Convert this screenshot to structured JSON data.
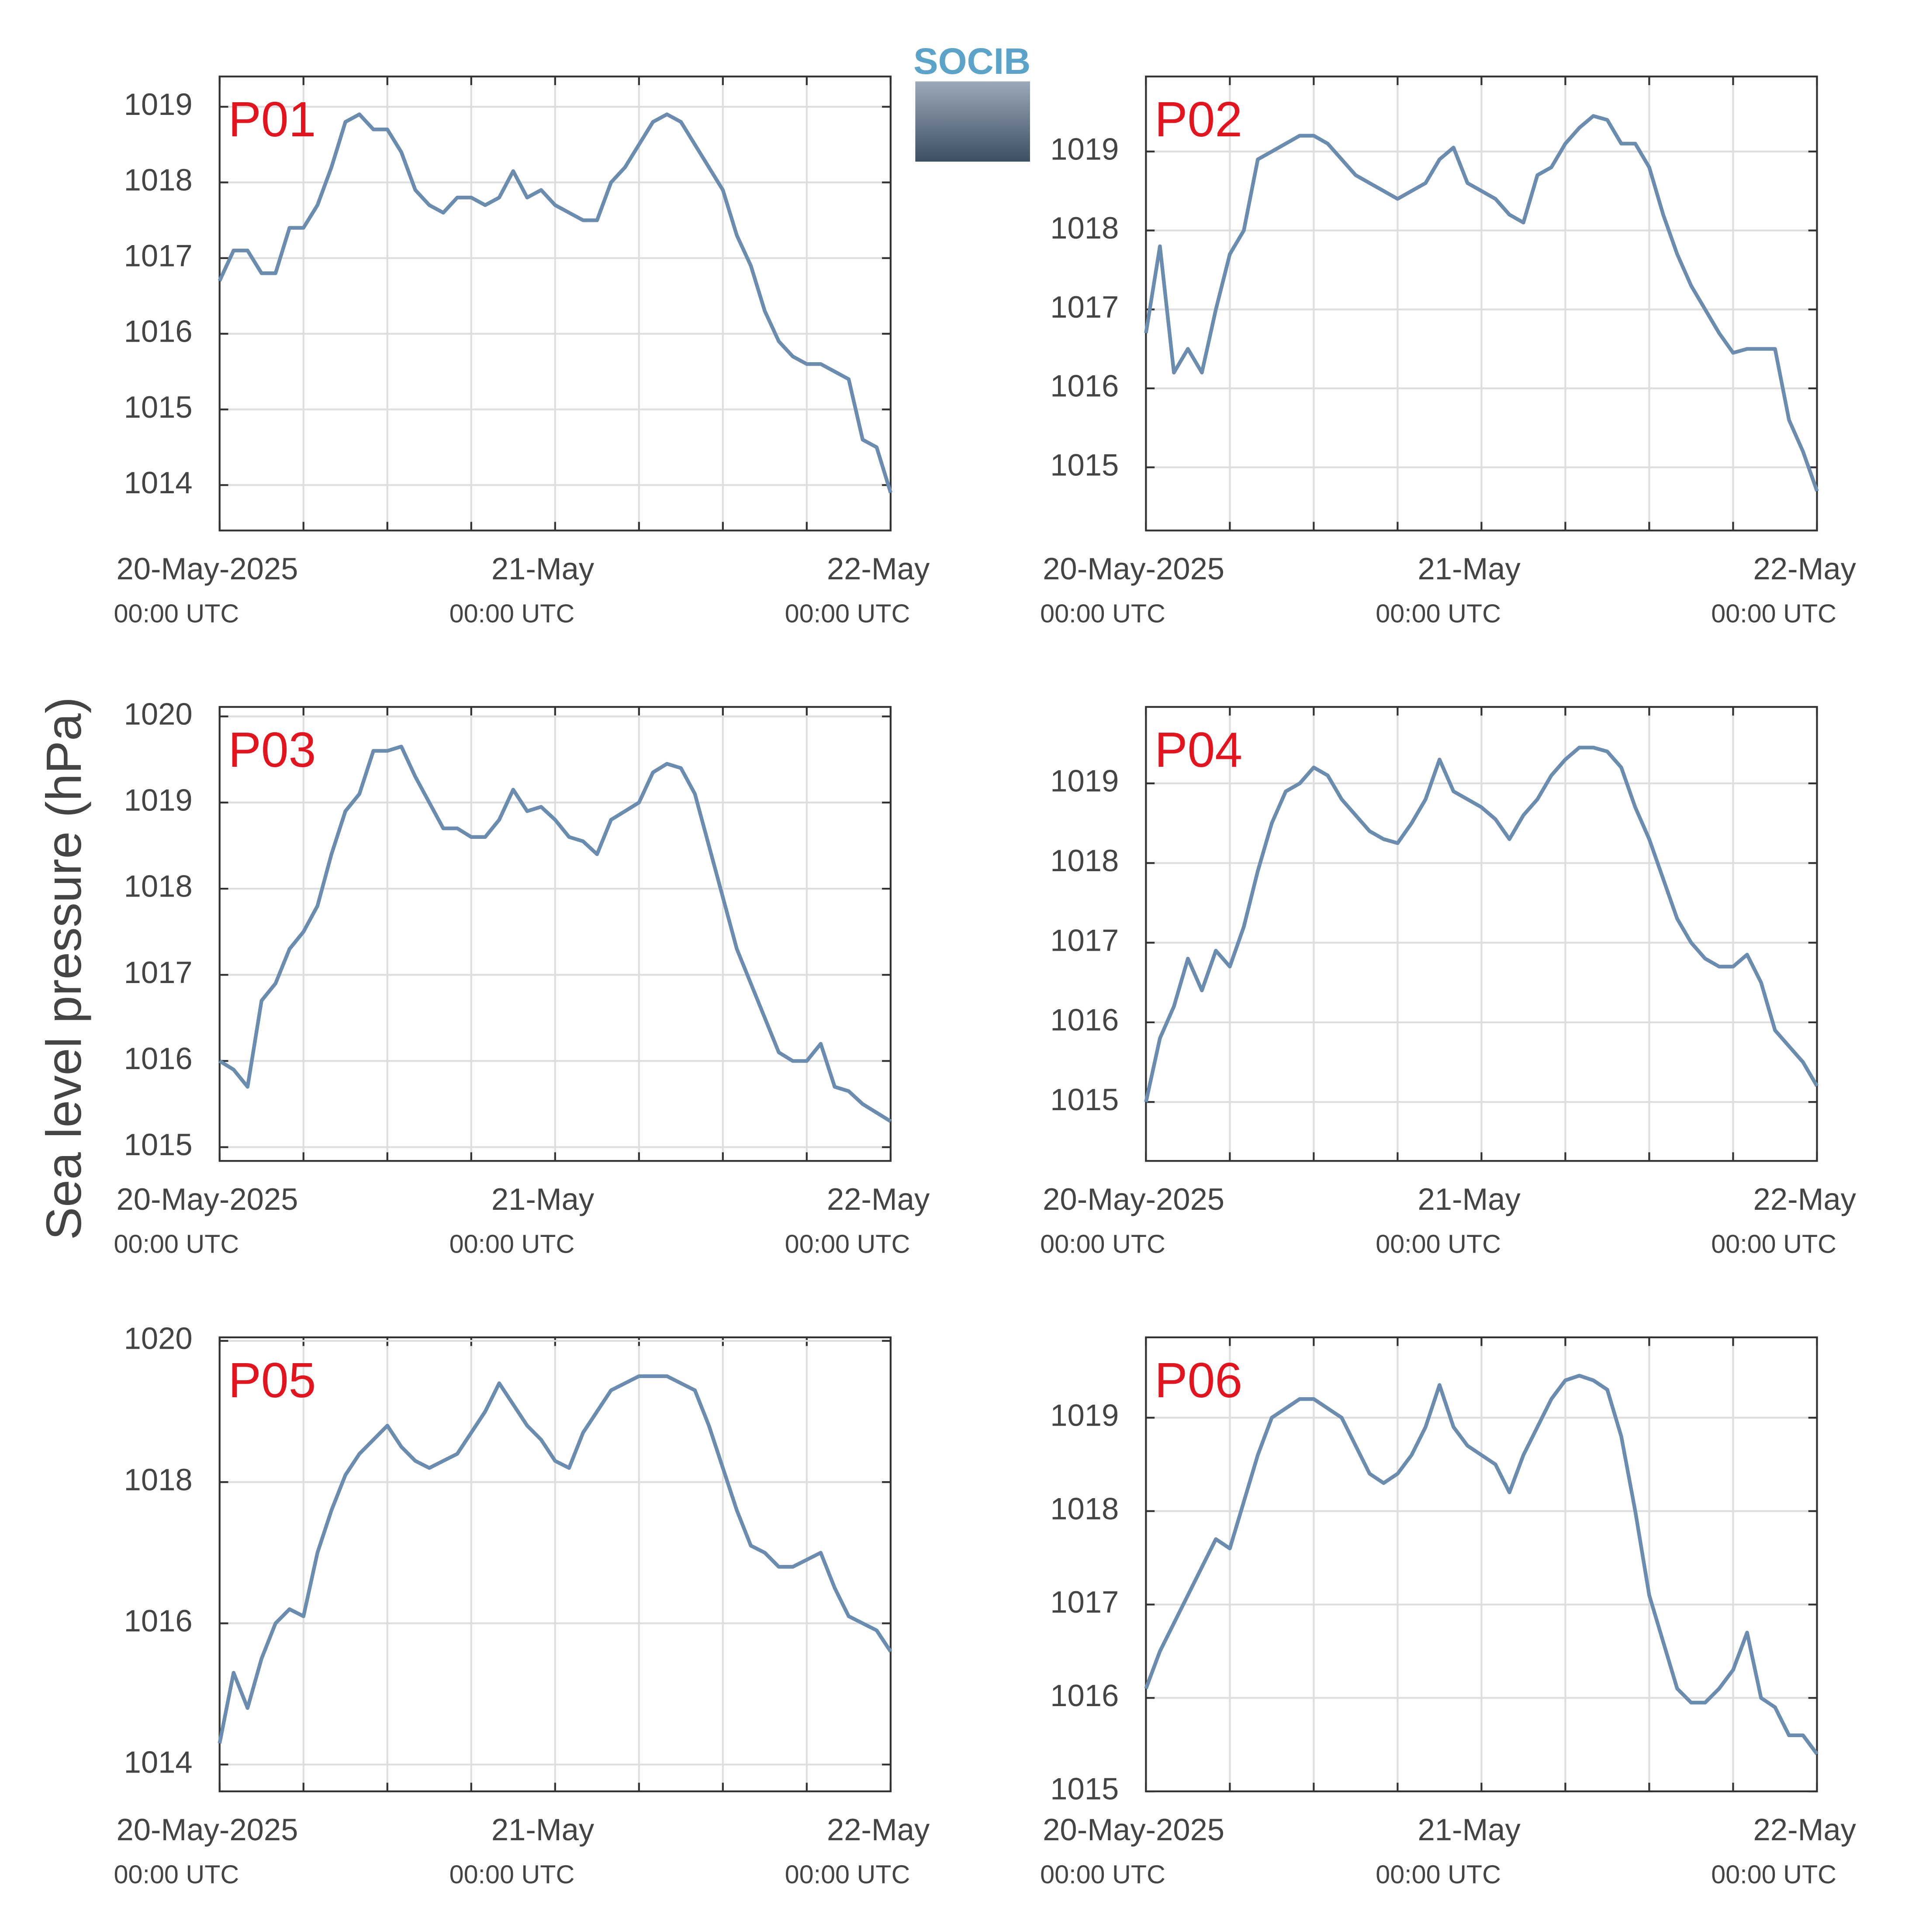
{
  "ylabel": "Sea level pressure (hPa)",
  "logo": "SOCIB",
  "chart_data": [
    {
      "type": "line",
      "title": "P01",
      "color": "#6a8caf",
      "grid": true,
      "xlim": [
        0,
        48
      ],
      "ylim": [
        1013.4,
        1019.4
      ],
      "yticks": [
        1014,
        1015,
        1016,
        1017,
        1018,
        1019
      ],
      "xticks": [
        {
          "value": 0,
          "label": "20-May-2025",
          "sublabel": "00:00 UTC"
        },
        {
          "value": 24,
          "label": "21-May",
          "sublabel": "00:00 UTC"
        },
        {
          "value": 48,
          "label": "22-May",
          "sublabel": "00:00 UTC"
        }
      ],
      "minor_xticks": [
        6,
        12,
        18,
        30,
        36,
        42
      ],
      "x": [
        0,
        1,
        2,
        3,
        4,
        5,
        6,
        7,
        8,
        9,
        10,
        11,
        12,
        13,
        14,
        15,
        16,
        17,
        18,
        19,
        20,
        21,
        22,
        23,
        24,
        25,
        26,
        27,
        28,
        29,
        30,
        31,
        32,
        33,
        34,
        35,
        36,
        37,
        38,
        39,
        40,
        41,
        42,
        43,
        44,
        45,
        46,
        47,
        48
      ],
      "values": [
        1016.7,
        1017.1,
        1017.1,
        1016.8,
        1016.8,
        1017.4,
        1017.4,
        1017.7,
        1018.2,
        1018.8,
        1018.9,
        1018.7,
        1018.7,
        1018.4,
        1017.9,
        1017.7,
        1017.6,
        1017.8,
        1017.8,
        1017.7,
        1017.8,
        1018.15,
        1017.8,
        1017.9,
        1017.7,
        1017.6,
        1017.5,
        1017.5,
        1018.0,
        1018.2,
        1018.5,
        1018.8,
        1018.9,
        1018.8,
        1018.5,
        1018.2,
        1017.9,
        1017.3,
        1016.9,
        1016.3,
        1015.9,
        1015.7,
        1015.6,
        1015.6,
        1015.5,
        1015.4,
        1014.6,
        1014.5,
        1013.9
      ]
    },
    {
      "type": "line",
      "title": "P02",
      "color": "#6a8caf",
      "grid": true,
      "xlim": [
        0,
        48
      ],
      "ylim": [
        1014.2,
        1019.95
      ],
      "yticks": [
        1015,
        1016,
        1017,
        1018,
        1019
      ],
      "xticks": [
        {
          "value": 0,
          "label": "20-May-2025",
          "sublabel": "00:00 UTC"
        },
        {
          "value": 24,
          "label": "21-May",
          "sublabel": "00:00 UTC"
        },
        {
          "value": 48,
          "label": "22-May",
          "sublabel": "00:00 UTC"
        }
      ],
      "minor_xticks": [
        6,
        12,
        18,
        30,
        36,
        42
      ],
      "x": [
        0,
        1,
        2,
        3,
        4,
        5,
        6,
        7,
        8,
        9,
        10,
        11,
        12,
        13,
        14,
        15,
        16,
        17,
        18,
        19,
        20,
        21,
        22,
        23,
        24,
        25,
        26,
        27,
        28,
        29,
        30,
        31,
        32,
        33,
        34,
        35,
        36,
        37,
        38,
        39,
        40,
        41,
        42,
        43,
        44,
        45,
        46,
        47,
        48
      ],
      "values": [
        1016.7,
        1017.8,
        1016.2,
        1016.5,
        1016.2,
        1017.0,
        1017.7,
        1018.0,
        1018.9,
        1019.0,
        1019.1,
        1019.2,
        1019.2,
        1019.1,
        1018.9,
        1018.7,
        1018.6,
        1018.5,
        1018.4,
        1018.5,
        1018.6,
        1018.9,
        1019.05,
        1018.6,
        1018.5,
        1018.4,
        1018.2,
        1018.1,
        1018.7,
        1018.8,
        1019.1,
        1019.3,
        1019.45,
        1019.4,
        1019.1,
        1019.1,
        1018.8,
        1018.2,
        1017.7,
        1017.3,
        1017.0,
        1016.7,
        1016.45,
        1016.5,
        1016.5,
        1016.5,
        1015.6,
        1015.2,
        1014.7
      ]
    },
    {
      "type": "line",
      "title": "P03",
      "color": "#6a8caf",
      "grid": true,
      "xlim": [
        0,
        48
      ],
      "ylim": [
        1014.84,
        1020.11
      ],
      "yticks": [
        1015,
        1016,
        1017,
        1018,
        1019,
        1020
      ],
      "xticks": [
        {
          "value": 0,
          "label": "20-May-2025",
          "sublabel": "00:00 UTC"
        },
        {
          "value": 24,
          "label": "21-May",
          "sublabel": "00:00 UTC"
        },
        {
          "value": 48,
          "label": "22-May",
          "sublabel": "00:00 UTC"
        }
      ],
      "minor_xticks": [
        6,
        12,
        18,
        30,
        36,
        42
      ],
      "x": [
        0,
        1,
        2,
        3,
        4,
        5,
        6,
        7,
        8,
        9,
        10,
        11,
        12,
        13,
        14,
        15,
        16,
        17,
        18,
        19,
        20,
        21,
        22,
        23,
        24,
        25,
        26,
        27,
        28,
        29,
        30,
        31,
        32,
        33,
        34,
        35,
        36,
        37,
        38,
        39,
        40,
        41,
        42,
        43,
        44,
        45,
        46,
        47,
        48
      ],
      "values": [
        1016.0,
        1015.9,
        1015.7,
        1016.7,
        1016.9,
        1017.3,
        1017.5,
        1017.8,
        1018.4,
        1018.9,
        1019.1,
        1019.6,
        1019.6,
        1019.65,
        1019.3,
        1019.0,
        1018.7,
        1018.7,
        1018.6,
        1018.6,
        1018.8,
        1019.15,
        1018.9,
        1018.95,
        1018.8,
        1018.6,
        1018.55,
        1018.4,
        1018.8,
        1018.9,
        1019.0,
        1019.35,
        1019.45,
        1019.4,
        1019.1,
        1018.5,
        1017.9,
        1017.3,
        1016.9,
        1016.5,
        1016.1,
        1016.0,
        1016.0,
        1016.2,
        1015.7,
        1015.65,
        1015.5,
        1015.4,
        1015.3
      ]
    },
    {
      "type": "line",
      "title": "P04",
      "color": "#6a8caf",
      "grid": true,
      "xlim": [
        0,
        48
      ],
      "ylim": [
        1014.26,
        1019.96
      ],
      "yticks": [
        1015,
        1016,
        1017,
        1018,
        1019
      ],
      "xticks": [
        {
          "value": 0,
          "label": "20-May-2025",
          "sublabel": "00:00 UTC"
        },
        {
          "value": 24,
          "label": "21-May",
          "sublabel": "00:00 UTC"
        },
        {
          "value": 48,
          "label": "22-May",
          "sublabel": "00:00 UTC"
        }
      ],
      "minor_xticks": [
        6,
        12,
        18,
        30,
        36,
        42
      ],
      "x": [
        0,
        1,
        2,
        3,
        4,
        5,
        6,
        7,
        8,
        9,
        10,
        11,
        12,
        13,
        14,
        15,
        16,
        17,
        18,
        19,
        20,
        21,
        22,
        23,
        24,
        25,
        26,
        27,
        28,
        29,
        30,
        31,
        32,
        33,
        34,
        35,
        36,
        37,
        38,
        39,
        40,
        41,
        42,
        43,
        44,
        45,
        46,
        47,
        48
      ],
      "values": [
        1015.0,
        1015.8,
        1016.2,
        1016.8,
        1016.4,
        1016.9,
        1016.7,
        1017.2,
        1017.9,
        1018.5,
        1018.9,
        1019.0,
        1019.2,
        1019.1,
        1018.8,
        1018.6,
        1018.4,
        1018.3,
        1018.25,
        1018.5,
        1018.8,
        1019.3,
        1018.9,
        1018.8,
        1018.7,
        1018.55,
        1018.3,
        1018.6,
        1018.8,
        1019.1,
        1019.3,
        1019.45,
        1019.45,
        1019.4,
        1019.2,
        1018.7,
        1018.3,
        1017.8,
        1017.3,
        1017.0,
        1016.8,
        1016.7,
        1016.7,
        1016.85,
        1016.5,
        1015.9,
        1015.7,
        1015.5,
        1015.2
      ]
    },
    {
      "type": "line",
      "title": "P05",
      "color": "#6a8caf",
      "grid": true,
      "xlim": [
        0,
        48
      ],
      "ylim": [
        1013.62,
        1020.05
      ],
      "yticks": [
        1014,
        1016,
        1018,
        1020
      ],
      "xticks": [
        {
          "value": 0,
          "label": "20-May-2025",
          "sublabel": "00:00 UTC"
        },
        {
          "value": 24,
          "label": "21-May",
          "sublabel": "00:00 UTC"
        },
        {
          "value": 48,
          "label": "22-May",
          "sublabel": "00:00 UTC"
        }
      ],
      "minor_xticks": [
        6,
        12,
        18,
        30,
        36,
        42
      ],
      "x": [
        0,
        1,
        2,
        3,
        4,
        5,
        6,
        7,
        8,
        9,
        10,
        11,
        12,
        13,
        14,
        15,
        16,
        17,
        18,
        19,
        20,
        21,
        22,
        23,
        24,
        25,
        26,
        27,
        28,
        29,
        30,
        31,
        32,
        33,
        34,
        35,
        36,
        37,
        38,
        39,
        40,
        41,
        42,
        43,
        44,
        45,
        46,
        47,
        48
      ],
      "values": [
        1014.3,
        1015.3,
        1014.8,
        1015.5,
        1016.0,
        1016.2,
        1016.1,
        1017.0,
        1017.6,
        1018.1,
        1018.4,
        1018.6,
        1018.8,
        1018.5,
        1018.3,
        1018.2,
        1018.3,
        1018.4,
        1018.7,
        1019.0,
        1019.4,
        1019.1,
        1018.8,
        1018.6,
        1018.3,
        1018.2,
        1018.7,
        1019.0,
        1019.3,
        1019.4,
        1019.5,
        1019.5,
        1019.5,
        1019.4,
        1019.3,
        1018.8,
        1018.2,
        1017.6,
        1017.1,
        1017.0,
        1016.8,
        1016.8,
        1016.9,
        1017.0,
        1016.5,
        1016.1,
        1016.0,
        1015.9,
        1015.6
      ]
    },
    {
      "type": "line",
      "title": "P06",
      "color": "#6a8caf",
      "grid": true,
      "xlim": [
        0,
        48
      ],
      "ylim": [
        1015,
        1019.86
      ],
      "yticks": [
        1015,
        1016,
        1017,
        1018,
        1019
      ],
      "xticks": [
        {
          "value": 0,
          "label": "20-May-2025",
          "sublabel": "00:00 UTC"
        },
        {
          "value": 24,
          "label": "21-May",
          "sublabel": "00:00 UTC"
        },
        {
          "value": 48,
          "label": "22-May",
          "sublabel": "00:00 UTC"
        }
      ],
      "minor_xticks": [
        6,
        12,
        18,
        30,
        36,
        42
      ],
      "x": [
        0,
        1,
        2,
        3,
        4,
        5,
        6,
        7,
        8,
        9,
        10,
        11,
        12,
        13,
        14,
        15,
        16,
        17,
        18,
        19,
        20,
        21,
        22,
        23,
        24,
        25,
        26,
        27,
        28,
        29,
        30,
        31,
        32,
        33,
        34,
        35,
        36,
        37,
        38,
        39,
        40,
        41,
        42,
        43,
        44,
        45,
        46,
        47,
        48
      ],
      "values": [
        1016.1,
        1016.5,
        1016.8,
        1017.1,
        1017.4,
        1017.7,
        1017.6,
        1018.1,
        1018.6,
        1019.0,
        1019.1,
        1019.2,
        1019.2,
        1019.1,
        1019.0,
        1018.7,
        1018.4,
        1018.3,
        1018.4,
        1018.6,
        1018.9,
        1019.35,
        1018.9,
        1018.7,
        1018.6,
        1018.5,
        1018.2,
        1018.6,
        1018.9,
        1019.2,
        1019.4,
        1019.45,
        1019.4,
        1019.3,
        1018.8,
        1018.0,
        1017.1,
        1016.6,
        1016.1,
        1015.95,
        1015.95,
        1016.1,
        1016.3,
        1016.7,
        1016.0,
        1015.9,
        1015.6,
        1015.6,
        1015.4
      ]
    }
  ]
}
